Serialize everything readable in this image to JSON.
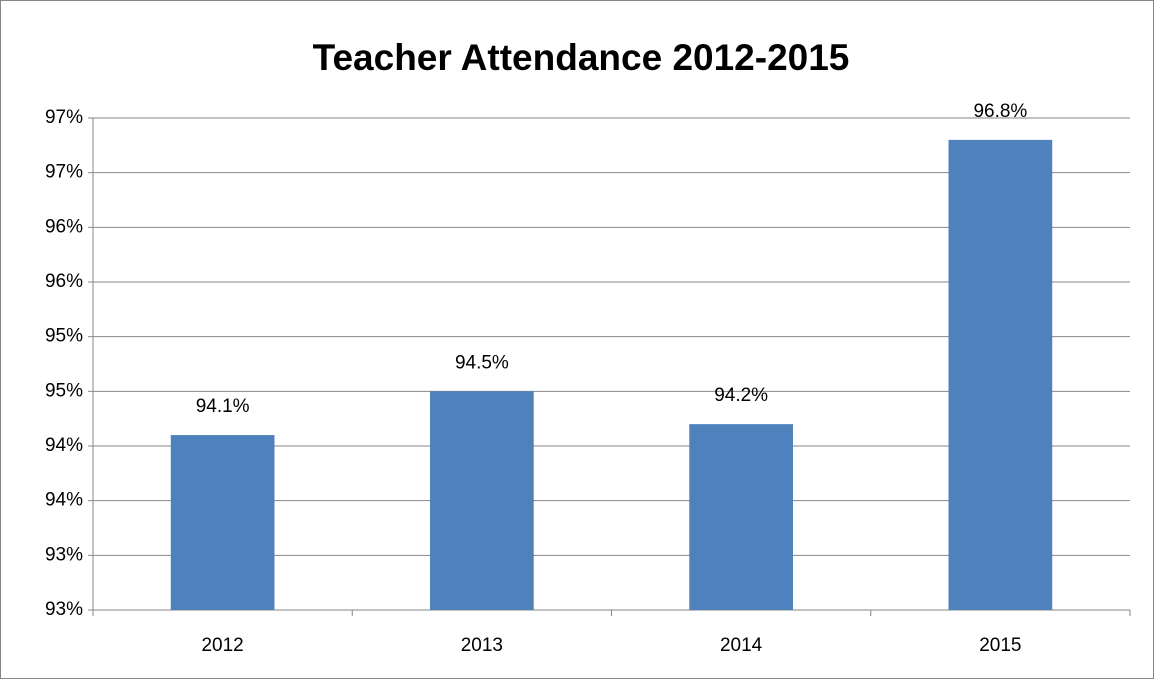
{
  "chart_data": {
    "type": "bar",
    "title": "Teacher Attendance 2012-2015",
    "categories": [
      "2012",
      "2013",
      "2014",
      "2015"
    ],
    "values": [
      94.1,
      94.5,
      94.2,
      96.8
    ],
    "value_labels": [
      "94.1%",
      "94.5%",
      "94.2%",
      "96.8%"
    ],
    "color": "#4f81bd",
    "ylim": [
      92.5,
      97
    ],
    "yticks": [
      {
        "value": 92.5,
        "label": "93%"
      },
      {
        "value": 93,
        "label": "93%"
      },
      {
        "value": 93.5,
        "label": "94%"
      },
      {
        "value": 94,
        "label": "94%"
      },
      {
        "value": 94.5,
        "label": "95%"
      },
      {
        "value": 95,
        "label": "95%"
      },
      {
        "value": 95.5,
        "label": "96%"
      },
      {
        "value": 96,
        "label": "96%"
      },
      {
        "value": 96.5,
        "label": "97%"
      },
      {
        "value": 97,
        "label": "97%"
      }
    ],
    "grid": true
  }
}
